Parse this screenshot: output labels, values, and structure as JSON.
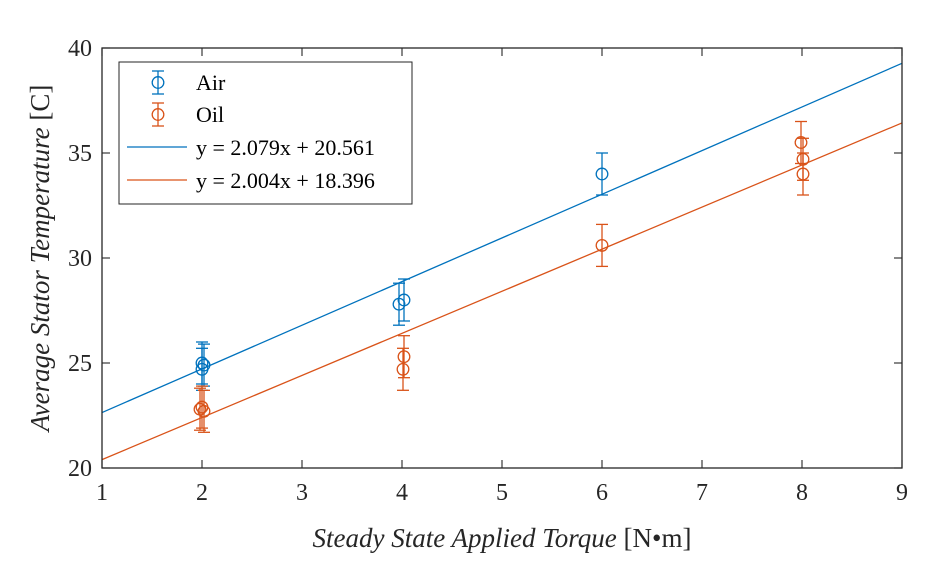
{
  "chart_data": {
    "type": "scatter",
    "xlabel": {
      "italic": "Steady State Applied Torque",
      "unit": " [N•m]"
    },
    "ylabel": {
      "italic": "Average Stator Temperature",
      "unit": " [C]"
    },
    "xlim": [
      1,
      9
    ],
    "ylim": [
      20,
      40
    ],
    "xticks": [
      "1",
      "2",
      "3",
      "4",
      "5",
      "6",
      "7",
      "8",
      "9"
    ],
    "yticks": [
      "20",
      "25",
      "30",
      "35",
      "40"
    ],
    "grid": false,
    "legend_position": "top-left",
    "series": [
      {
        "name": "Air",
        "color": "#0072BD",
        "marker": "circle",
        "points": [
          {
            "x": 2.0,
            "y": 25.0,
            "err": 1.0
          },
          {
            "x": 2.02,
            "y": 24.9,
            "err": 1.0
          },
          {
            "x": 2.0,
            "y": 24.7,
            "err": 1.0
          },
          {
            "x": 3.97,
            "y": 27.8,
            "err": 1.0
          },
          {
            "x": 4.02,
            "y": 28.0,
            "err": 1.0
          },
          {
            "x": 6.0,
            "y": 34.0,
            "err": 1.0
          }
        ]
      },
      {
        "name": "Oil",
        "color": "#D95319",
        "marker": "circle",
        "points": [
          {
            "x": 1.98,
            "y": 22.8,
            "err": 1.0
          },
          {
            "x": 2.0,
            "y": 22.9,
            "err": 1.0
          },
          {
            "x": 2.02,
            "y": 22.7,
            "err": 1.0
          },
          {
            "x": 4.02,
            "y": 25.3,
            "err": 1.0
          },
          {
            "x": 4.01,
            "y": 24.7,
            "err": 1.0
          },
          {
            "x": 6.0,
            "y": 30.6,
            "err": 1.0
          },
          {
            "x": 7.99,
            "y": 35.5,
            "err": 1.0
          },
          {
            "x": 8.01,
            "y": 34.7,
            "err": 1.0
          },
          {
            "x": 8.01,
            "y": 34.0,
            "err": 1.0
          }
        ]
      }
    ],
    "fits": [
      {
        "name": "y = 2.079x + 20.561",
        "slope": 2.079,
        "intercept": 20.561,
        "color": "#0072BD"
      },
      {
        "name": "y = 2.004x + 18.396",
        "slope": 2.004,
        "intercept": 18.396,
        "color": "#D95319"
      }
    ]
  }
}
